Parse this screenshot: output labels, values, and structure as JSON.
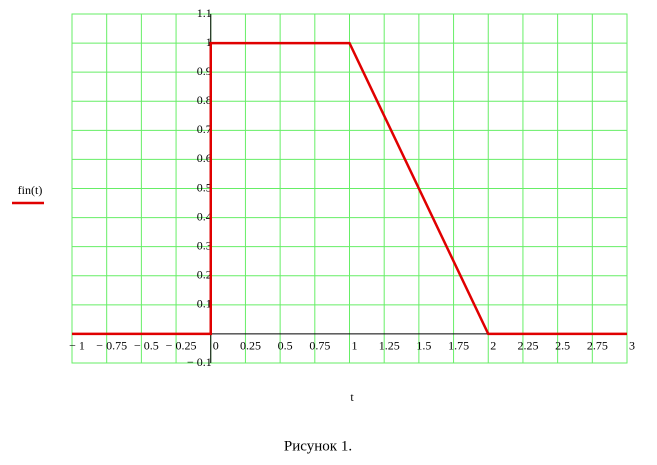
{
  "chart_data": {
    "type": "line",
    "x_label": "t",
    "caption": "Рисунок  1.",
    "x": [
      -1,
      0,
      0,
      1,
      2,
      3
    ],
    "series": [
      {
        "name": "fin(t)",
        "color": "#e00000",
        "values": [
          0,
          0,
          1,
          1,
          0,
          0
        ]
      }
    ],
    "xlim": [
      -1,
      3
    ],
    "ylim": [
      -0.1,
      1.1
    ],
    "xticks": [
      {
        "value": -1,
        "label": "− 1"
      },
      {
        "value": -0.75,
        "label": "− 0.75"
      },
      {
        "value": -0.5,
        "label": "− 0.5"
      },
      {
        "value": -0.25,
        "label": "− 0.25"
      },
      0,
      0.25,
      0.5,
      0.75,
      1,
      1.25,
      1.5,
      1.75,
      2,
      2.25,
      2.5,
      2.75,
      3
    ],
    "yticks": [
      {
        "value": -0.1,
        "label": "− 0.1"
      },
      0.1,
      0.2,
      0.3,
      0.4,
      0.5,
      0.6,
      0.7,
      0.8,
      0.9,
      1,
      1.1
    ],
    "grid": true,
    "grid_color": "#66ee66"
  }
}
